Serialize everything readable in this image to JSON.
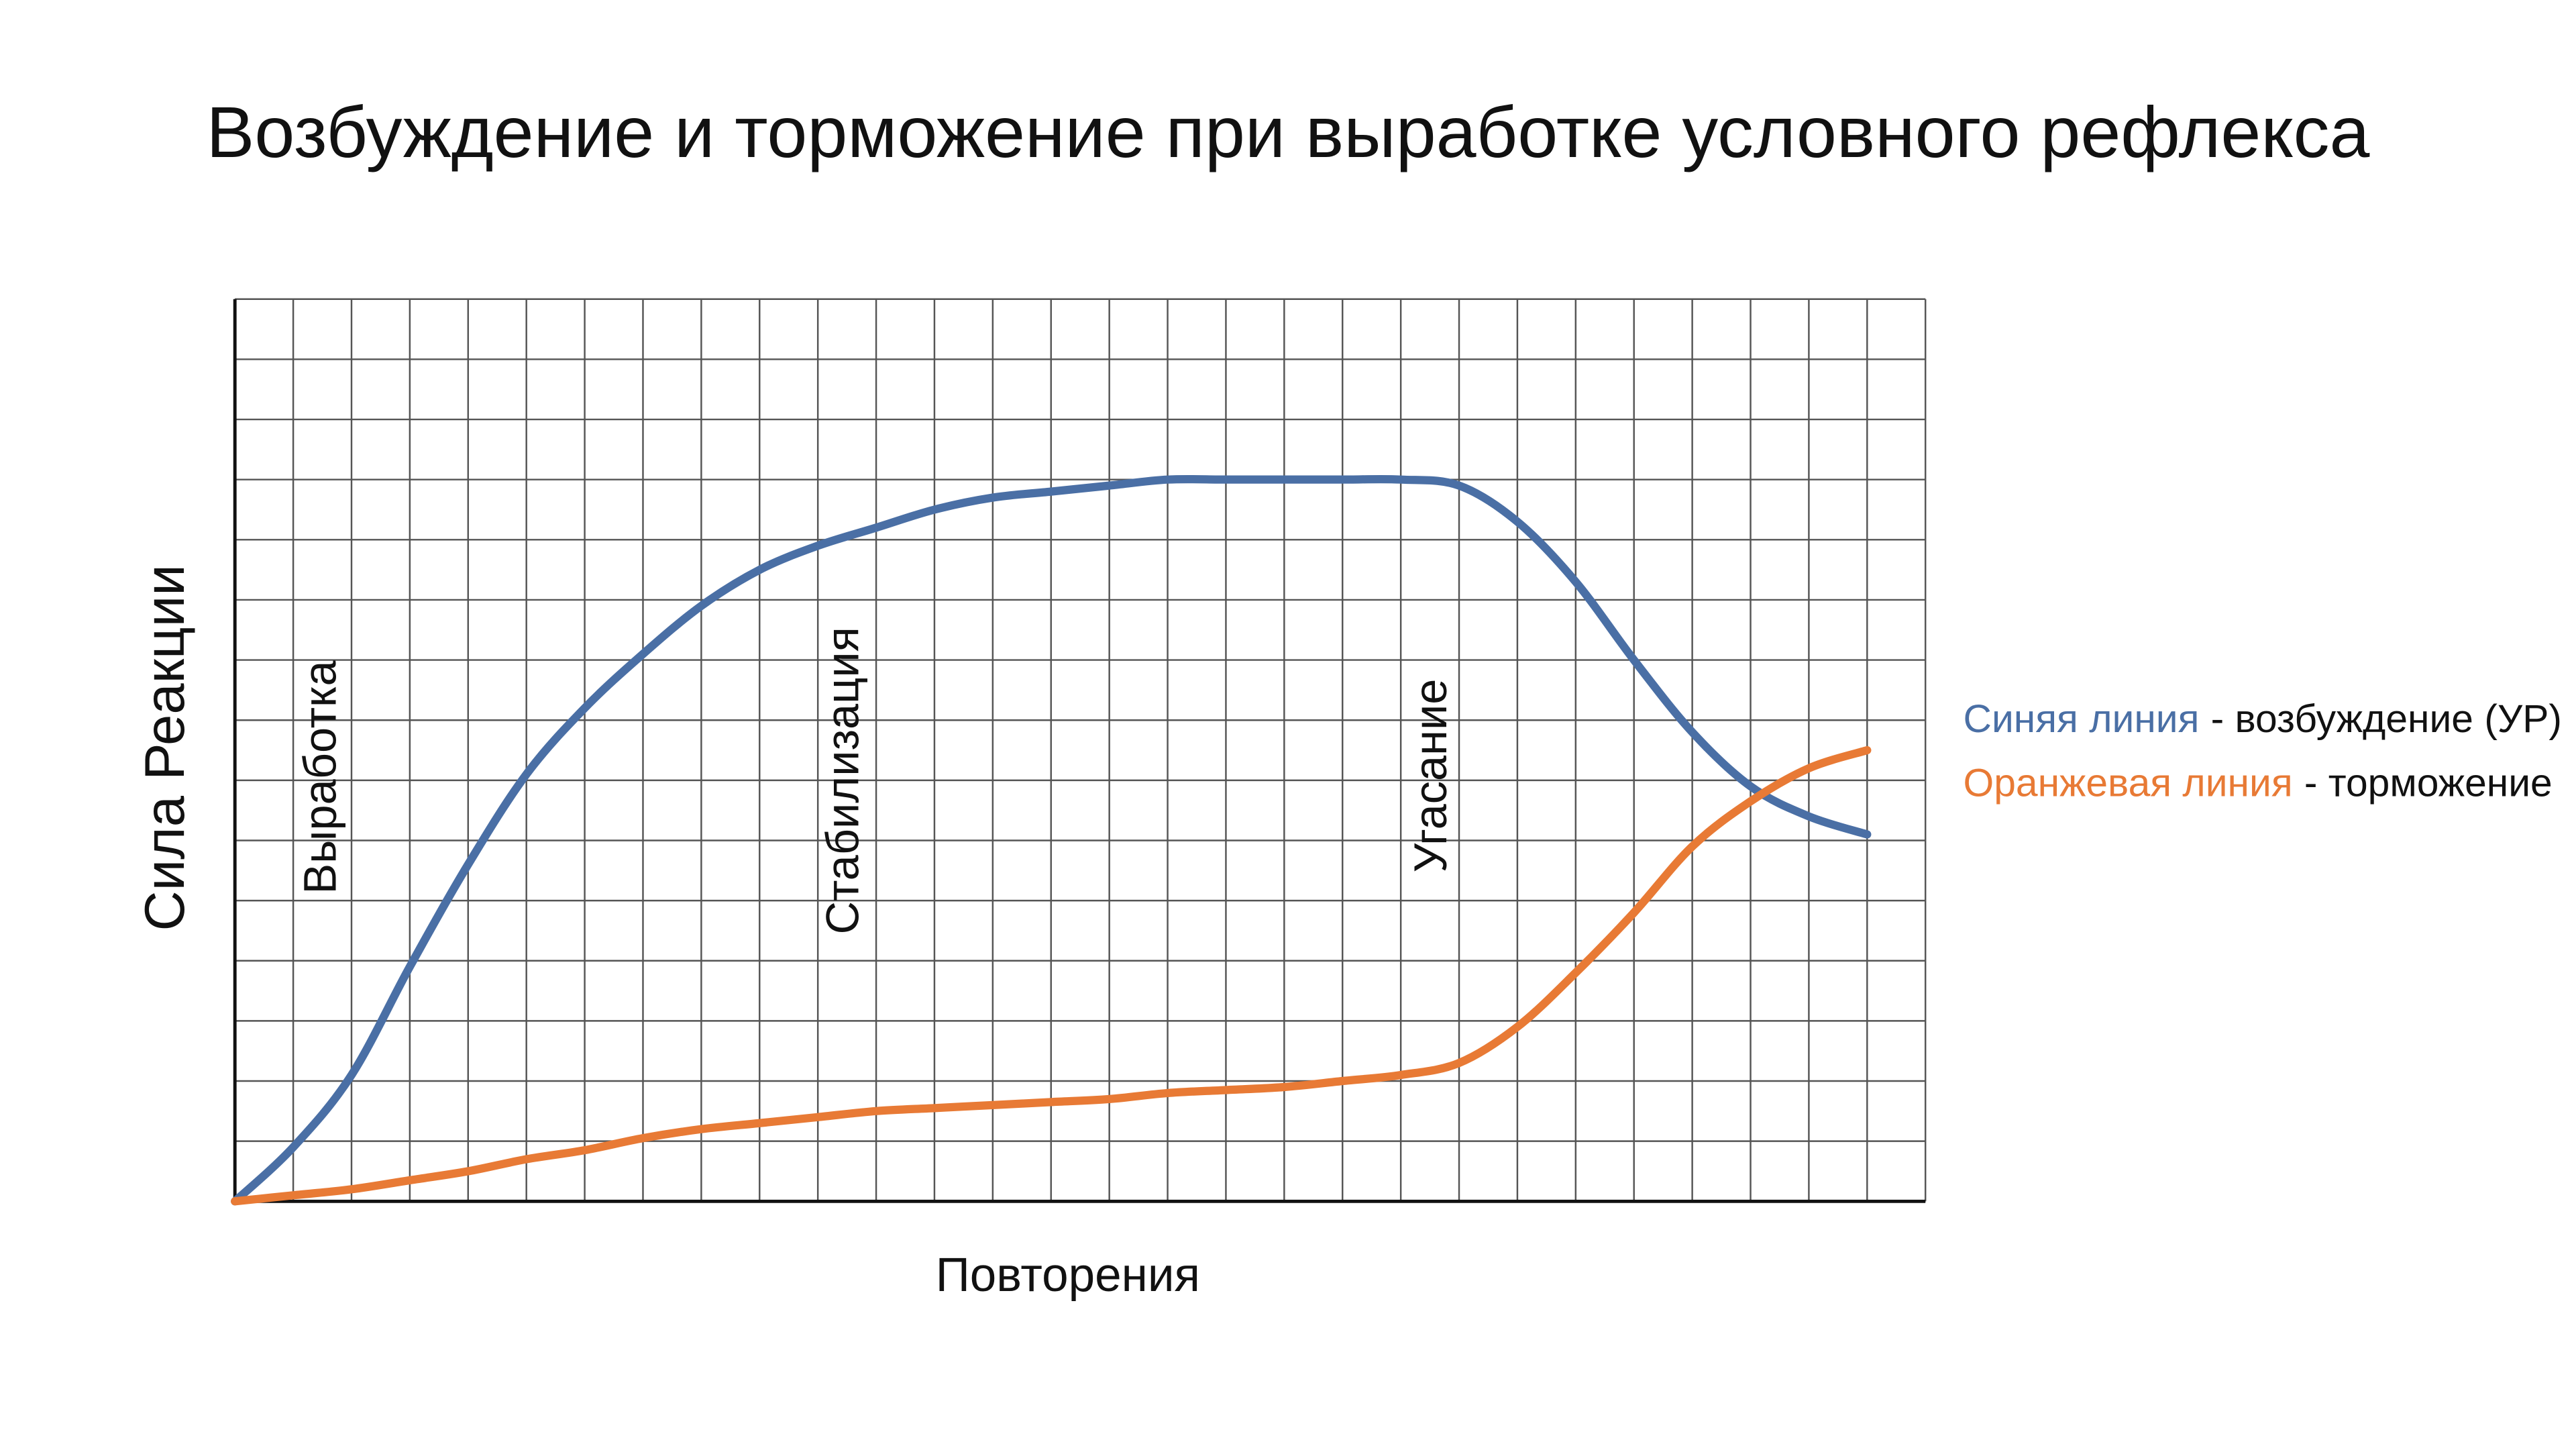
{
  "chart_data": {
    "type": "line",
    "title": "Возбуждение и торможение при выработке условного рефлекса",
    "x_label": "Повторения",
    "y_label": "Сила Реакции",
    "x": [
      0,
      1,
      2,
      3,
      4,
      5,
      6,
      7,
      8,
      9,
      10,
      11,
      12,
      13,
      14,
      15,
      16,
      17,
      18,
      19,
      20,
      21,
      22,
      23,
      24,
      25,
      26,
      27,
      28
    ],
    "series": [
      {
        "name": "Синяя линия",
        "description": "- возбуждение (УР)",
        "color": "#4a6fa5",
        "values": [
          0,
          0.9,
          2.1,
          3.9,
          5.6,
          7.1,
          8.2,
          9.1,
          9.9,
          10.5,
          10.9,
          11.2,
          11.5,
          11.7,
          11.8,
          11.9,
          12,
          12,
          12,
          12,
          12,
          11.9,
          11.3,
          10.3,
          9,
          7.8,
          6.9,
          6.4,
          6.1
        ]
      },
      {
        "name": "Оранжевая линия",
        "description": "- торможение",
        "color": "#e87a35",
        "values": [
          0,
          0.1,
          0.2,
          0.35,
          0.5,
          0.7,
          0.85,
          1.05,
          1.2,
          1.3,
          1.4,
          1.5,
          1.55,
          1.6,
          1.65,
          1.7,
          1.8,
          1.85,
          1.9,
          2,
          2.1,
          2.3,
          2.9,
          3.8,
          4.8,
          5.9,
          6.65,
          7.2,
          7.5
        ]
      }
    ],
    "annotations": [
      "Выработка",
      "Стабилизация",
      "Угасание"
    ],
    "xlim": [
      0,
      29
    ],
    "ylim": [
      0,
      15
    ],
    "xticks": [
      0,
      1,
      2,
      3,
      4,
      5,
      6,
      7,
      8,
      9,
      10,
      11,
      12,
      13,
      14,
      15,
      16,
      17,
      18,
      19,
      20,
      21,
      22,
      23,
      24,
      25,
      26,
      27,
      28,
      29
    ],
    "yticks": [
      0,
      1,
      2,
      3,
      4,
      5,
      6,
      7,
      8,
      9,
      10,
      11,
      12,
      13,
      14,
      15
    ],
    "grid": true,
    "tick_labels": false
  }
}
